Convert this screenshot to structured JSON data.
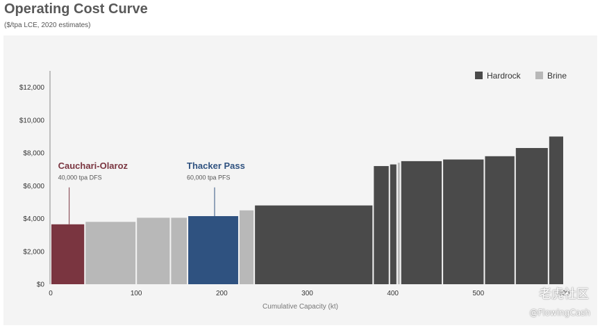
{
  "header": {
    "title": "Operating Cost Curve",
    "subtitle": "($/tpa LCE, 2020 estimates)"
  },
  "colors": {
    "hardrock": "#4a4a4a",
    "brine": "#b8b8b8",
    "cauchari": "#7a3540",
    "thacker": "#2f5280"
  },
  "chart_data": {
    "type": "bar",
    "subtype": "cost-curve (variable-width bars)",
    "title": "",
    "xlabel": "Cumulative Capacity (kt)",
    "ylabel": "",
    "xlim": [
      0,
      600
    ],
    "ylim": [
      0,
      13000
    ],
    "x_ticks": [
      0,
      100,
      200,
      300,
      400,
      500,
      600
    ],
    "x_tick_labels": [
      "0",
      "100",
      "200",
      "300",
      "400",
      "500",
      "600"
    ],
    "y_ticks": [
      0,
      2000,
      4000,
      6000,
      8000,
      10000,
      12000
    ],
    "y_tick_labels": [
      "$0",
      "$2,000",
      "$4,000",
      "$6,000",
      "$8,000",
      "$10,000",
      "$12,000"
    ],
    "legend": {
      "position": "top-right",
      "entries": [
        {
          "label": "Hardrock",
          "color": "#4a4a4a"
        },
        {
          "label": "Brine",
          "color": "#b8b8b8"
        }
      ]
    },
    "bars": [
      {
        "x0": 0,
        "x1": 40,
        "value": 3650,
        "type": "brine",
        "highlight": "cauchari"
      },
      {
        "x0": 40,
        "x1": 100,
        "value": 3800,
        "type": "brine"
      },
      {
        "x0": 100,
        "x1": 140,
        "value": 4050,
        "type": "brine"
      },
      {
        "x0": 140,
        "x1": 160,
        "value": 4050,
        "type": "brine"
      },
      {
        "x0": 160,
        "x1": 220,
        "value": 4150,
        "type": "hardrock",
        "highlight": "thacker"
      },
      {
        "x0": 220,
        "x1": 238,
        "value": 4500,
        "type": "brine"
      },
      {
        "x0": 238,
        "x1": 377,
        "value": 4800,
        "type": "hardrock"
      },
      {
        "x0": 377,
        "x1": 396,
        "value": 7200,
        "type": "hardrock"
      },
      {
        "x0": 396,
        "x1": 405,
        "value": 7300,
        "type": "hardrock"
      },
      {
        "x0": 405,
        "x1": 409,
        "value": 7400,
        "type": "brine"
      },
      {
        "x0": 409,
        "x1": 458,
        "value": 7500,
        "type": "hardrock"
      },
      {
        "x0": 458,
        "x1": 507,
        "value": 7600,
        "type": "hardrock"
      },
      {
        "x0": 507,
        "x1": 543,
        "value": 7800,
        "type": "hardrock"
      },
      {
        "x0": 543,
        "x1": 582,
        "value": 8300,
        "type": "hardrock"
      },
      {
        "x0": 582,
        "x1": 600,
        "value": 9000,
        "type": "hardrock"
      }
    ],
    "annotations": [
      {
        "key": "cauchari",
        "title": "Cauchari-Olaroz",
        "subtitle": "40,000 tpa DFS",
        "x": 20,
        "text_y": 7200,
        "sub_y": 6550,
        "line_top": 5900,
        "line_bottom": 3650
      },
      {
        "key": "thacker",
        "title": "Thacker Pass",
        "subtitle": "60,000 tpa PFS",
        "x": 190,
        "text_y": 7200,
        "sub_y": 6550,
        "line_top": 5900,
        "line_bottom": 4150
      }
    ]
  },
  "watermark": {
    "line1": "老虎社区",
    "line2": "@FlowingCash"
  }
}
